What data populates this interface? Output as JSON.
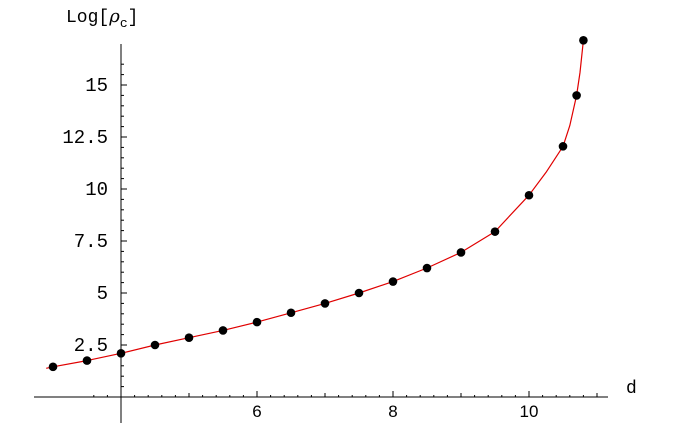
{
  "chart_data": {
    "type": "line",
    "title": "",
    "xlabel": "d",
    "ylabel": "Log[",
    "ylabel_symbol": "ρ",
    "ylabel_subscript": "c",
    "ylabel_close": "]",
    "xlim": [
      3.5,
      11.1
    ],
    "ylim": [
      0,
      16.5
    ],
    "axis_origin": [
      4,
      0
    ],
    "xticks": [
      6,
      8,
      10
    ],
    "yticks": [
      2.5,
      5,
      7.5,
      10,
      12.5,
      15
    ],
    "ytick_labels": [
      "2.5",
      "5",
      "7.5",
      "10",
      "12.5",
      "15"
    ],
    "xtick_labels": [
      "6",
      "8",
      "10"
    ],
    "grid": false,
    "colors": {
      "curve": "#e00000",
      "points": "#000000",
      "axes": "#000000"
    },
    "series": [
      {
        "kind": "points",
        "x": [
          3,
          3.5,
          4,
          4.5,
          5,
          5.5,
          6,
          6.5,
          7,
          7.5,
          8,
          8.5,
          9,
          9.5,
          10,
          10.5,
          10.7,
          10.8
        ],
        "y": [
          1.45,
          1.75,
          2.1,
          2.5,
          2.85,
          3.2,
          3.6,
          4.05,
          4.5,
          5.0,
          5.55,
          6.2,
          6.95,
          7.95,
          9.7,
          12.05,
          14.5,
          17.15
        ]
      },
      {
        "kind": "line",
        "x": [
          2.9,
          3,
          3.5,
          4,
          4.5,
          5,
          5.5,
          6,
          6.5,
          7,
          7.5,
          8,
          8.5,
          9,
          9.5,
          10,
          10.25,
          10.5,
          10.6,
          10.7,
          10.75,
          10.8,
          10.85
        ],
        "y": [
          1.38,
          1.45,
          1.75,
          2.1,
          2.5,
          2.85,
          3.2,
          3.6,
          4.05,
          4.5,
          5.0,
          5.55,
          6.2,
          6.95,
          7.95,
          9.7,
          10.8,
          12.05,
          13.05,
          14.5,
          15.6,
          17.15,
          18.3
        ]
      }
    ]
  }
}
